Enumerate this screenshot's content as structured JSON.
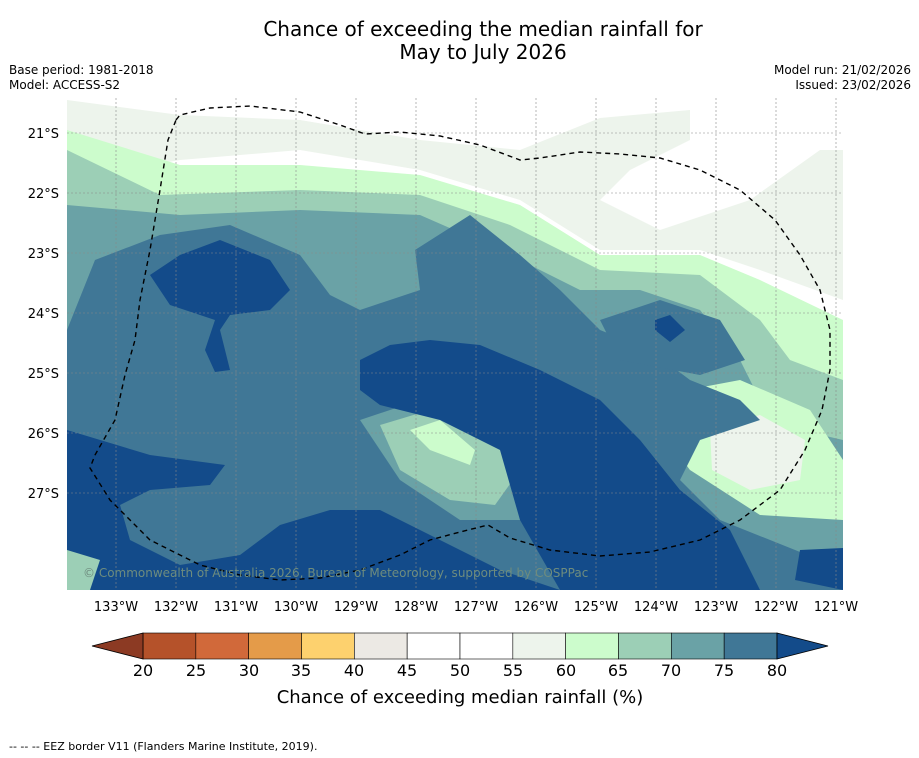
{
  "title_line1": "Chance of exceeding the median rainfall for",
  "title_line2": "May to July 2026",
  "base_period": "Base period: 1981-2018",
  "model": "Model: ACCESS-S2",
  "model_run": "Model run: 21/02/2026",
  "issued": "Issued: 23/02/2026",
  "lat_labels": [
    "21°S",
    "22°S",
    "23°S",
    "24°S",
    "25°S",
    "26°S",
    "27°S"
  ],
  "lon_labels": [
    "133°W",
    "132°W",
    "131°W",
    "130°W",
    "129°W",
    "128°W",
    "127°W",
    "126°W",
    "125°W",
    "124°W",
    "123°W",
    "122°W",
    "121°W"
  ],
  "copyright": "© Commonwealth of Australia 2026, Bureau of Meteorology, supported by COSPPac",
  "colorbar": {
    "ticks": [
      "20",
      "25",
      "30",
      "35",
      "40",
      "45",
      "50",
      "55",
      "60",
      "65",
      "70",
      "75",
      "80"
    ],
    "colors": [
      "#b5522a",
      "#d1693a",
      "#e49b49",
      "#fdd16e",
      "#ece9e4",
      "#ffffff",
      "#ffffff",
      "#edf4ec",
      "#ccfccc",
      "#9ccfb6",
      "#6aa2a6",
      "#407796"
    ],
    "low_color": "#8c3a23",
    "high_color": "#134b8a",
    "label": "Chance of exceeding median rainfall (%)"
  },
  "footnote": "--  --  -- EEZ border V11 (Flanders Marine Institute, 2019)."
}
